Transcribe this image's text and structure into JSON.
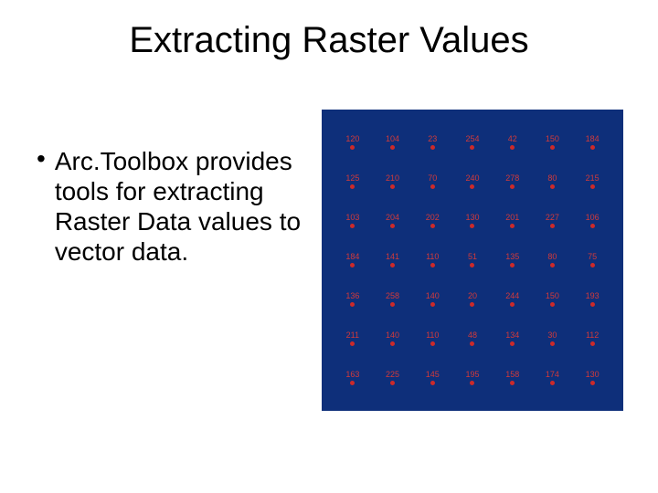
{
  "title": "Extracting Raster Values",
  "title_fontsize": 40,
  "bullet": {
    "marker": "•",
    "text": "Arc.Toolbox provides tools for extracting Raster Data values to vector data.",
    "fontsize": 28
  },
  "raster_panel": {
    "background_color": "#0e2f7a",
    "label_color": "#d23a3a",
    "dot_color": "#cc2a2a",
    "label_fontsize": 9,
    "dot_diameter": 5,
    "rows": 7,
    "cols": 7,
    "values": [
      [
        "120",
        "104",
        "23",
        "254",
        "42",
        "150",
        "184"
      ],
      [
        "125",
        "210",
        "70",
        "240",
        "278",
        "80",
        "215"
      ],
      [
        "103",
        "204",
        "202",
        "130",
        "201",
        "227",
        "106"
      ],
      [
        "184",
        "141",
        "110",
        "51",
        "135",
        "80",
        "75"
      ],
      [
        "136",
        "258",
        "140",
        "20",
        "244",
        "150",
        "193"
      ],
      [
        "211",
        "140",
        "110",
        "48",
        "134",
        "30",
        "112"
      ],
      [
        "163",
        "225",
        "145",
        "195",
        "158",
        "174",
        "130"
      ]
    ]
  }
}
